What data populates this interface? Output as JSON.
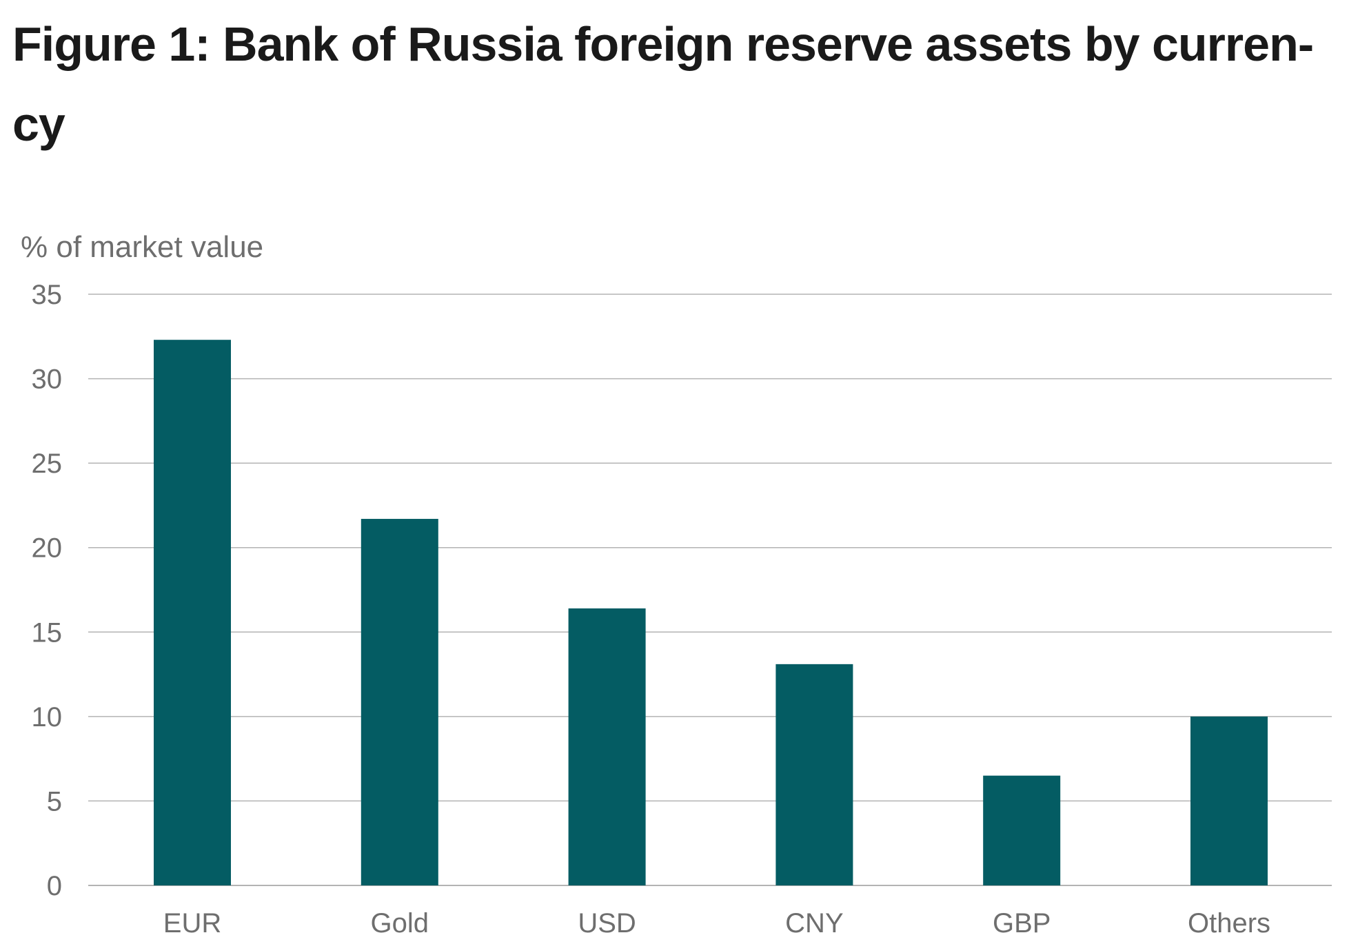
{
  "figure": {
    "title": "Figure 1: Bank of Russia foreign reserve assets by curren-cy"
  },
  "chart_data": {
    "type": "bar",
    "title": "Figure 1: Bank of Russia foreign reserve assets by curren-cy",
    "xlabel": "",
    "ylabel": "% of market value",
    "categories": [
      "EUR",
      "Gold",
      "USD",
      "CNY",
      "GBP",
      "Others"
    ],
    "values": [
      32.3,
      21.7,
      16.4,
      13.1,
      6.5,
      10.0
    ],
    "ylim": [
      0,
      35
    ],
    "yticks": [
      0,
      5,
      10,
      15,
      20,
      25,
      30,
      35
    ],
    "grid": true,
    "legend": "none",
    "bar_color": "#045c63"
  }
}
